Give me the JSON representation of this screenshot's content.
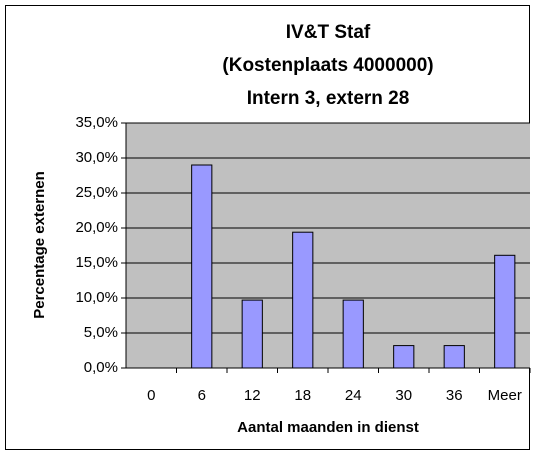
{
  "chart_data": {
    "type": "bar",
    "title": [
      "IV&T Staf",
      "(Kostenplaats 4000000)",
      "Intern 3, extern 28"
    ],
    "x_label": "Aantal maanden in dienst",
    "y_label": "Percentage externen",
    "categories": [
      "0",
      "6",
      "12",
      "18",
      "24",
      "30",
      "36",
      "Meer"
    ],
    "values": [
      0,
      29.0,
      9.7,
      19.4,
      9.7,
      3.2,
      3.2,
      16.1
    ],
    "color": "#9999ff",
    "ylim": [
      0,
      35
    ],
    "yticks": [
      {
        "value": 0,
        "label": "0,0%"
      },
      {
        "value": 5,
        "label": "5,0%"
      },
      {
        "value": 10,
        "label": "10,0%"
      },
      {
        "value": 15,
        "label": "15,0%"
      },
      {
        "value": 20,
        "label": "20,0%"
      },
      {
        "value": 25,
        "label": "25,0%"
      },
      {
        "value": 30,
        "label": "30,0%"
      },
      {
        "value": 35,
        "label": "35,0%"
      }
    ],
    "grid": true
  }
}
